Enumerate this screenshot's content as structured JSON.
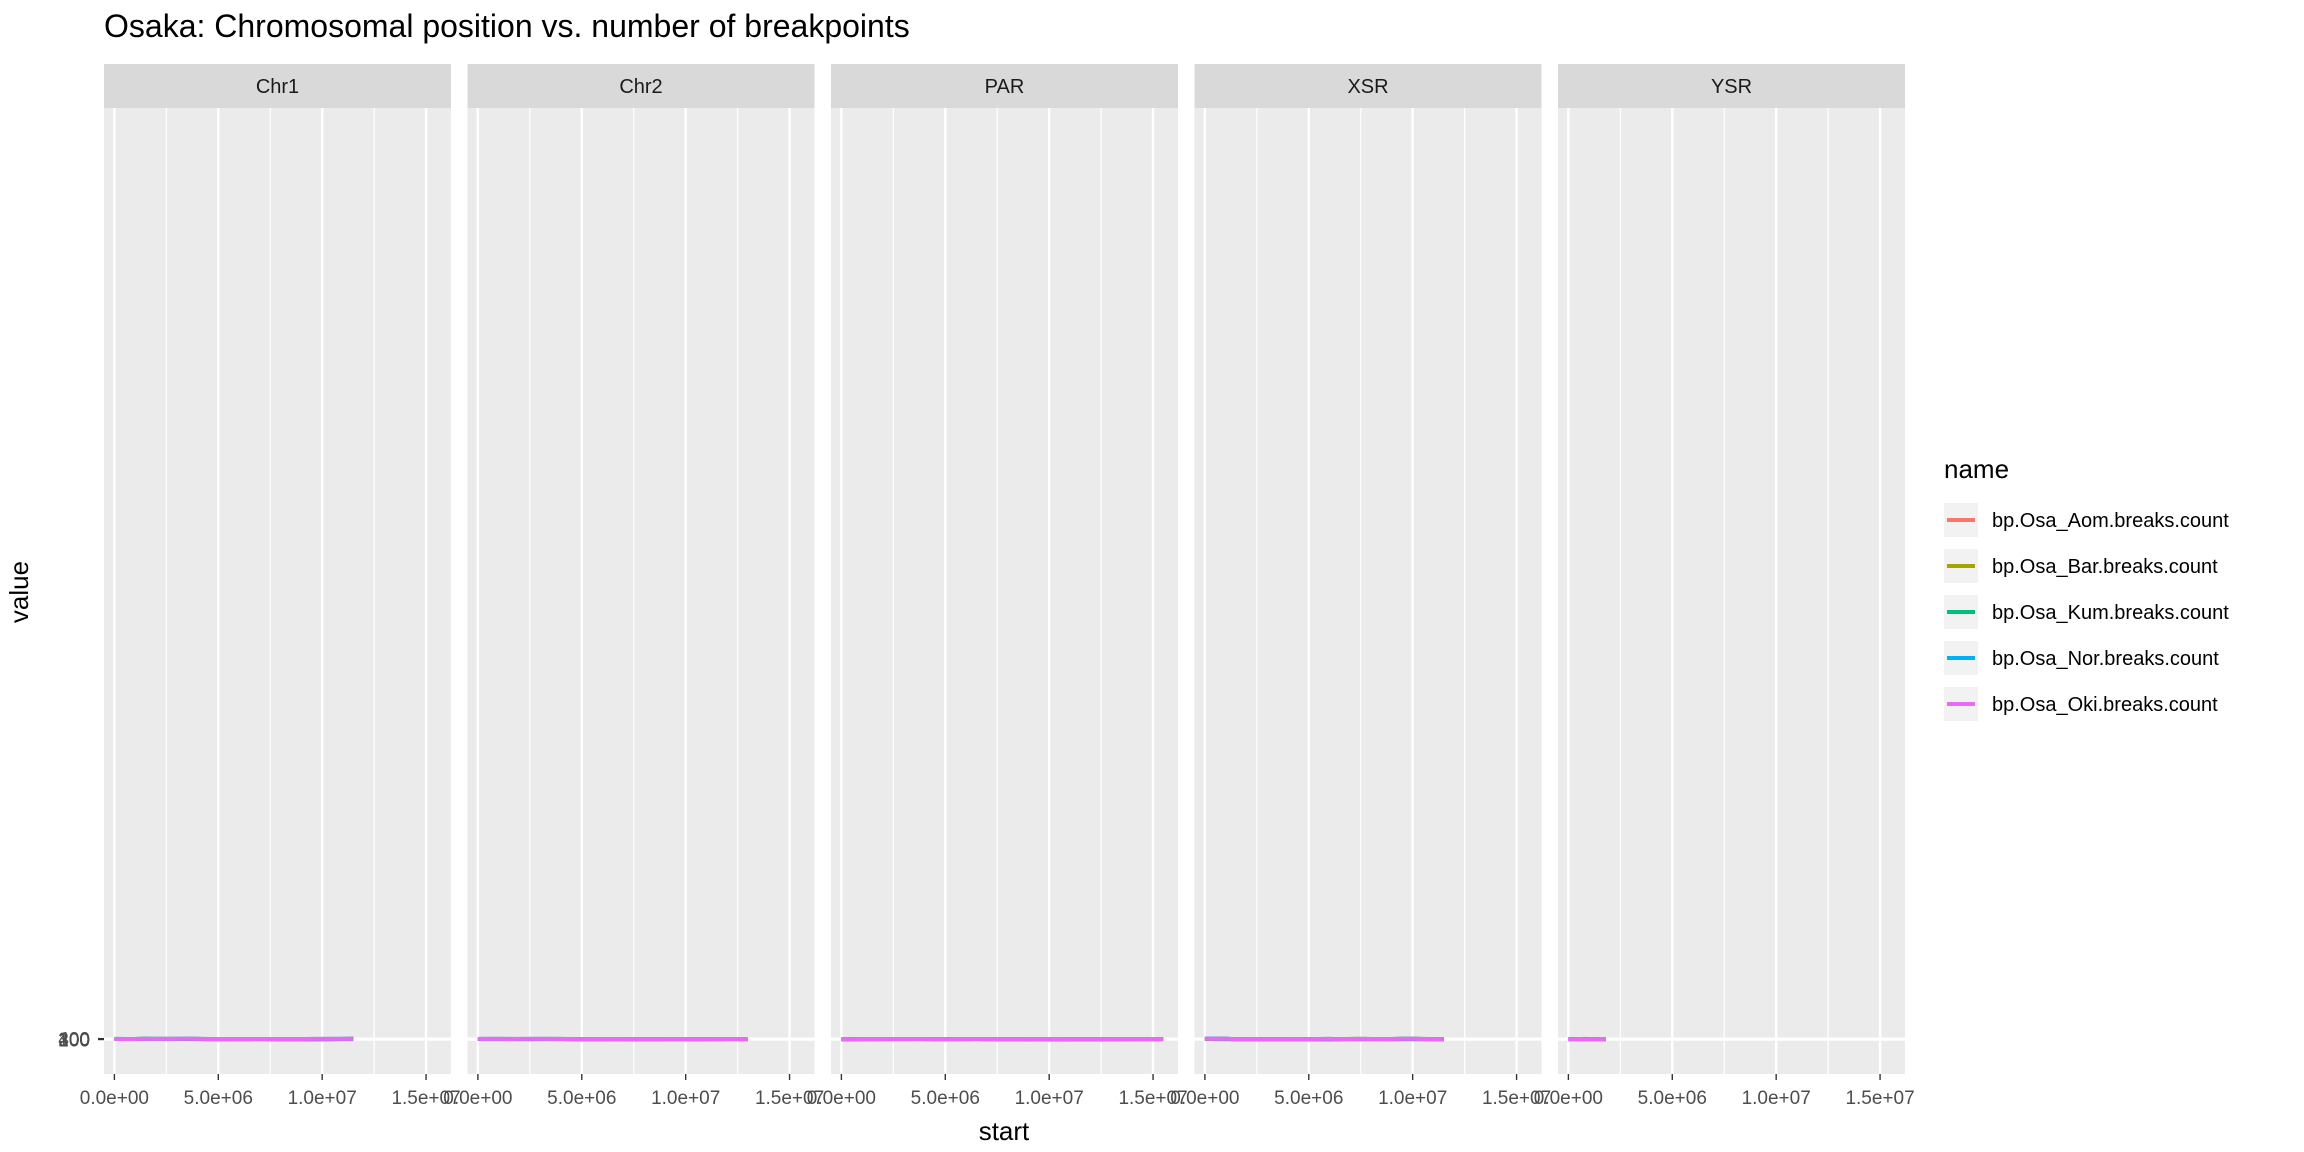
{
  "chart_data": {
    "type": "line",
    "title": "Osaka: Chromosomal position vs. number of breakpoints",
    "xlabel": "start",
    "ylabel": "value",
    "xlim": [
      -500000,
      16200000
    ],
    "ylim": [
      -16000,
      432000
    ],
    "x_ticks": [
      0,
      5000000,
      10000000,
      15000000
    ],
    "x_tick_labels": [
      "0.0e+00",
      "5.0e+06",
      "1.0e+07",
      "1.5e+07"
    ],
    "y_ticks": [
      0,
      100,
      200,
      300,
      400
    ],
    "y_tick_labels": [
      "0",
      "100",
      "200",
      "300",
      "400"
    ],
    "grid": true,
    "legend": {
      "title": "name",
      "position": "right"
    },
    "panels": [
      "Chr1",
      "Chr2",
      "PAR",
      "XSR",
      "YSR"
    ],
    "series_names": [
      "bp.Osa_Aom.breaks.count",
      "bp.Osa_Bar.breaks.count",
      "bp.Osa_Kum.breaks.count",
      "bp.Osa_Nor.breaks.count",
      "bp.Osa_Oki.breaks.count"
    ],
    "colors": [
      "#F8766D",
      "#A3A500",
      "#00BF7D",
      "#00B0F6",
      "#E76BF3"
    ],
    "series": {
      "Chr1": {
        "x": [
          0,
          500000,
          1000000,
          1500000,
          2000000,
          2500000,
          3000000,
          3500000,
          4000000,
          4500000,
          5000000,
          5500000,
          6000000,
          6500000,
          7000000,
          7500000,
          8000000,
          8500000,
          9000000,
          9500000,
          10000000,
          10500000,
          11000000,
          11500000
        ],
        "bp.Osa_Aom.breaks.count": [
          262,
          212,
          222,
          254,
          238,
          251,
          236,
          207,
          170,
          100,
          80,
          85,
          98,
          104,
          99,
          82,
          65,
          72,
          78,
          79,
          90,
          120,
          155,
          189
        ],
        "bp.Osa_Bar.breaks.count": [
          258,
          245,
          260,
          332,
          313,
          298,
          305,
          316,
          285,
          215,
          160,
          152,
          150,
          175,
          230,
          210,
          100,
          80,
          92,
          135,
          145,
          180,
          260,
          350
        ],
        "bp.Osa_Kum.breaks.count": [
          245,
          228,
          250,
          318,
          278,
          278,
          288,
          318,
          300,
          255,
          240,
          248,
          244,
          248,
          262,
          255,
          230,
          210,
          240,
          262,
          268,
          285,
          310,
          352
        ],
        "bp.Osa_Nor.breaks.count": [
          294,
          258,
          262,
          318,
          288,
          285,
          303,
          320,
          310,
          200,
          158,
          153,
          155,
          185,
          220,
          190,
          100,
          98,
          122,
          140,
          148,
          190,
          270,
          350
        ],
        "bp.Osa_Oki.breaks.count": [
          240,
          225,
          248,
          316,
          295,
          282,
          292,
          320,
          290,
          255,
          245,
          250,
          245,
          250,
          262,
          248,
          225,
          205,
          228,
          265,
          270,
          285,
          305,
          345
        ]
      },
      "Chr2": {
        "x": [
          0,
          500000,
          1000000,
          1500000,
          2000000,
          2500000,
          3000000,
          3500000,
          4000000,
          4500000,
          5000000,
          5500000,
          6000000,
          6500000,
          7000000,
          7500000,
          8000000,
          8500000,
          9000000,
          9500000,
          10000000,
          10500000,
          11000000,
          11500000,
          12000000,
          12500000,
          13000000
        ],
        "bp.Osa_Aom.breaks.count": [
          155,
          170,
          176,
          168,
          140,
          130,
          155,
          182,
          172,
          130,
          80,
          58,
          62,
          70,
          62,
          48,
          40,
          42,
          42,
          45,
          44,
          50,
          90,
          135,
          139,
          130,
          112
        ],
        "bp.Osa_Bar.breaks.count": [
          262,
          240,
          232,
          228,
          225,
          215,
          238,
          238,
          205,
          140,
          90,
          80,
          120,
          150,
          130,
          80,
          80,
          100,
          150,
          188,
          180,
          130,
          150,
          195,
          205,
          198,
          170
        ],
        "bp.Osa_Kum.breaks.count": [
          262,
          278,
          282,
          270,
          262,
          268,
          280,
          296,
          270,
          230,
          200,
          205,
          240,
          240,
          210,
          185,
          172,
          182,
          225,
          248,
          212,
          182,
          205,
          230,
          238,
          232,
          213
        ],
        "bp.Osa_Nor.breaks.count": [
          248,
          238,
          230,
          225,
          218,
          212,
          225,
          238,
          222,
          170,
          120,
          100,
          135,
          165,
          155,
          120,
          110,
          120,
          150,
          176,
          165,
          135,
          145,
          175,
          208,
          205,
          180
        ],
        "bp.Osa_Oki.breaks.count": [
          272,
          275,
          270,
          260,
          268,
          280,
          294,
          295,
          262,
          228,
          190,
          200,
          250,
          252,
          220,
          185,
          178,
          188,
          230,
          252,
          215,
          175,
          190,
          230,
          237,
          230,
          212
        ]
      },
      "PAR": {
        "x": [
          0,
          500000,
          1000000,
          1500000,
          2000000,
          2500000,
          3000000,
          3500000,
          4000000,
          4500000,
          5000000,
          5500000,
          6000000,
          6500000,
          7000000,
          7500000,
          8000000,
          8500000,
          9000000,
          9500000,
          10000000,
          10500000,
          11000000,
          11500000,
          12000000,
          12500000,
          13000000,
          13500000,
          14000000,
          14500000,
          15000000,
          15500000
        ],
        "bp.Osa_Aom.breaks.count": [
          138,
          142,
          143,
          140,
          138,
          148,
          162,
          178,
          195,
          182,
          165,
          152,
          150,
          152,
          145,
          115,
          75,
          48,
          47,
          48,
          46,
          46,
          47,
          42,
          35,
          32,
          45,
          70,
          82,
          95,
          112,
          131
        ],
        "bp.Osa_Bar.breaks.count": [
          48,
          110,
          180,
          200,
          202,
          208,
          220,
          233,
          222,
          195,
          175,
          178,
          200,
          210,
          140,
          95,
          120,
          157,
          125,
          95,
          78,
          70,
          60,
          50,
          45,
          45,
          80,
          145,
          175,
          185,
          192,
          190
        ],
        "bp.Osa_Kum.breaks.count": [
          65,
          120,
          200,
          234,
          228,
          232,
          244,
          233,
          210,
          190,
          175,
          200,
          228,
          248,
          240,
          205,
          172,
          180,
          200,
          222,
          215,
          195,
          168,
          155,
          170,
          195,
          210,
          225,
          228,
          232,
          240,
          246
        ],
        "bp.Osa_Nor.breaks.count": [
          62,
          120,
          172,
          190,
          185,
          180,
          192,
          202,
          192,
          175,
          168,
          170,
          185,
          210,
          175,
          120,
          130,
          145,
          130,
          110,
          95,
          85,
          75,
          70,
          65,
          80,
          120,
          160,
          175,
          185,
          195,
          207
        ],
        "bp.Osa_Oki.breaks.count": [
          47,
          130,
          208,
          232,
          225,
          220,
          228,
          236,
          225,
          195,
          178,
          205,
          240,
          250,
          225,
          195,
          178,
          185,
          205,
          222,
          225,
          205,
          170,
          152,
          165,
          192,
          208,
          222,
          230,
          236,
          242,
          246
        ]
      },
      "XSR": {
        "x": [
          0,
          500000,
          1000000,
          1500000,
          2000000,
          2500000,
          3000000,
          3500000,
          4000000,
          4500000,
          5000000,
          5500000,
          6000000,
          6500000,
          7000000,
          7500000,
          8000000,
          8500000,
          9000000,
          9500000,
          10000000,
          10500000,
          11000000,
          11500000
        ],
        "bp.Osa_Aom.breaks.count": [
          198,
          200,
          140,
          45,
          35,
          38,
          37,
          36,
          40,
          35,
          30,
          22,
          16,
          30,
          55,
          62,
          50,
          52,
          70,
          92,
          90,
          70,
          45,
          44
        ],
        "bp.Osa_Bar.breaks.count": [
          405,
          400,
          300,
          140,
          110,
          105,
          95,
          100,
          88,
          100,
          140,
          128,
          108,
          220,
          285,
          280,
          240,
          232,
          250,
          350,
          352,
          270,
          200,
          190
        ],
        "bp.Osa_Kum.breaks.count": [
          380,
          375,
          320,
          160,
          200,
          225,
          165,
          200,
          222,
          210,
          198,
          250,
          275,
          210,
          230,
          278,
          255,
          232,
          245,
          318,
          320,
          260,
          190,
          185
        ],
        "bp.Osa_Nor.breaks.count": [
          385,
          378,
          320,
          160,
          140,
          125,
          115,
          100,
          105,
          96,
          110,
          140,
          118,
          200,
          255,
          260,
          245,
          210,
          205,
          298,
          300,
          240,
          185,
          163
        ],
        "bp.Osa_Oki.breaks.count": [
          378,
          370,
          322,
          200,
          210,
          228,
          162,
          198,
          225,
          208,
          200,
          260,
          282,
          215,
          235,
          285,
          258,
          230,
          248,
          315,
          318,
          255,
          188,
          185
        ]
      },
      "YSR": {
        "x": [
          0,
          150000,
          300000,
          450000,
          600000,
          750000,
          900000,
          1050000,
          1200000,
          1350000,
          1500000,
          1650000,
          1800000
        ],
        "bp.Osa_Aom.breaks.count": [
          170,
          252,
          256,
          182,
          200,
          268,
          240,
          190,
          228,
          225,
          155,
          160,
          245
        ],
        "bp.Osa_Bar.breaks.count": [
          38,
          60,
          50,
          65,
          48,
          78,
          70,
          78,
          76,
          60,
          72,
          56,
          60
        ],
        "bp.Osa_Kum.breaks.count": [
          8,
          18,
          26,
          12,
          22,
          16,
          18,
          22,
          20,
          14,
          24,
          18,
          23
        ],
        "bp.Osa_Nor.breaks.count": [
          45,
          80,
          85,
          58,
          72,
          88,
          75,
          85,
          70,
          90,
          60,
          72,
          70
        ],
        "bp.Osa_Oki.breaks.count": [
          10,
          18,
          20,
          26,
          22,
          16,
          20,
          14,
          18,
          12,
          16,
          8,
          4
        ]
      }
    }
  }
}
